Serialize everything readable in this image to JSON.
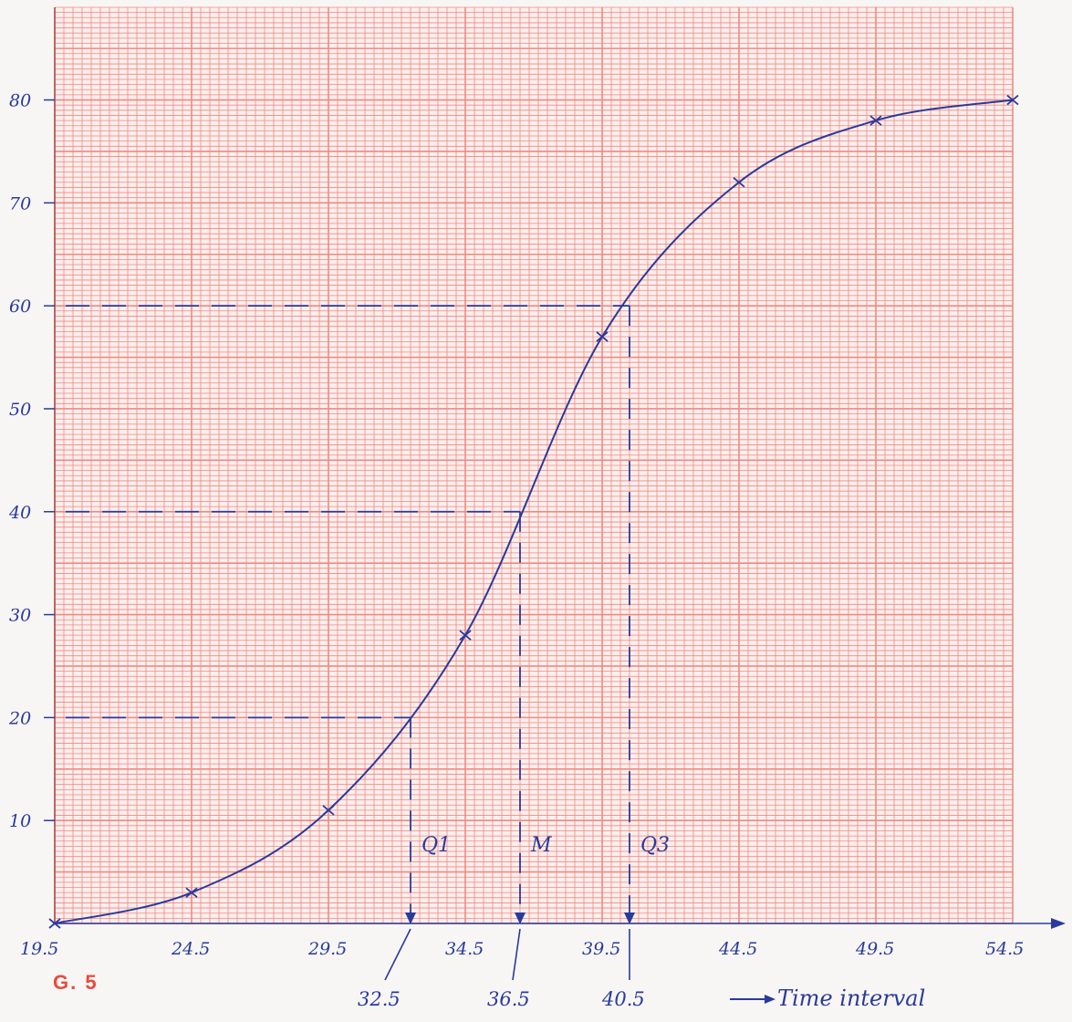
{
  "page": {
    "figure_label": "G. 5"
  },
  "chart_data": {
    "type": "line",
    "title": "",
    "ylabel": "",
    "xlabel": "Time interval",
    "xlim": [
      19.5,
      54.5
    ],
    "ylim": [
      0,
      89
    ],
    "x_ticks": [
      19.5,
      24.5,
      29.5,
      34.5,
      39.5,
      44.5,
      49.5,
      54.5
    ],
    "x_tick_labels": [
      "19.5",
      "24.5",
      "29.5",
      "34.5",
      "39.5",
      "44.5",
      "49.5",
      "54.5"
    ],
    "y_ticks": [
      10,
      20,
      30,
      40,
      50,
      60,
      70,
      80
    ],
    "y_tick_labels": [
      "10",
      "20",
      "30",
      "40",
      "50",
      "60",
      "70",
      "80"
    ],
    "grid": true,
    "series": [
      {
        "x": [
          19.5,
          24.5,
          29.5,
          34.5,
          39.5,
          44.5,
          49.5,
          54.5
        ],
        "y": [
          0,
          3,
          11,
          28,
          57,
          72,
          78,
          80
        ],
        "marker": "x",
        "color": "#2a3a9c"
      }
    ],
    "reference_lines": [
      {
        "label": "Q1",
        "y": 20,
        "x": 32.5,
        "value_label": "32.5"
      },
      {
        "label": "M",
        "y": 40,
        "x": 36.5,
        "value_label": "36.5"
      },
      {
        "label": "Q3",
        "y": 60,
        "x": 40.5,
        "value_label": "40.5"
      }
    ],
    "colors": {
      "grid": "#ef8a80",
      "ink": "#2a3a9c"
    }
  }
}
